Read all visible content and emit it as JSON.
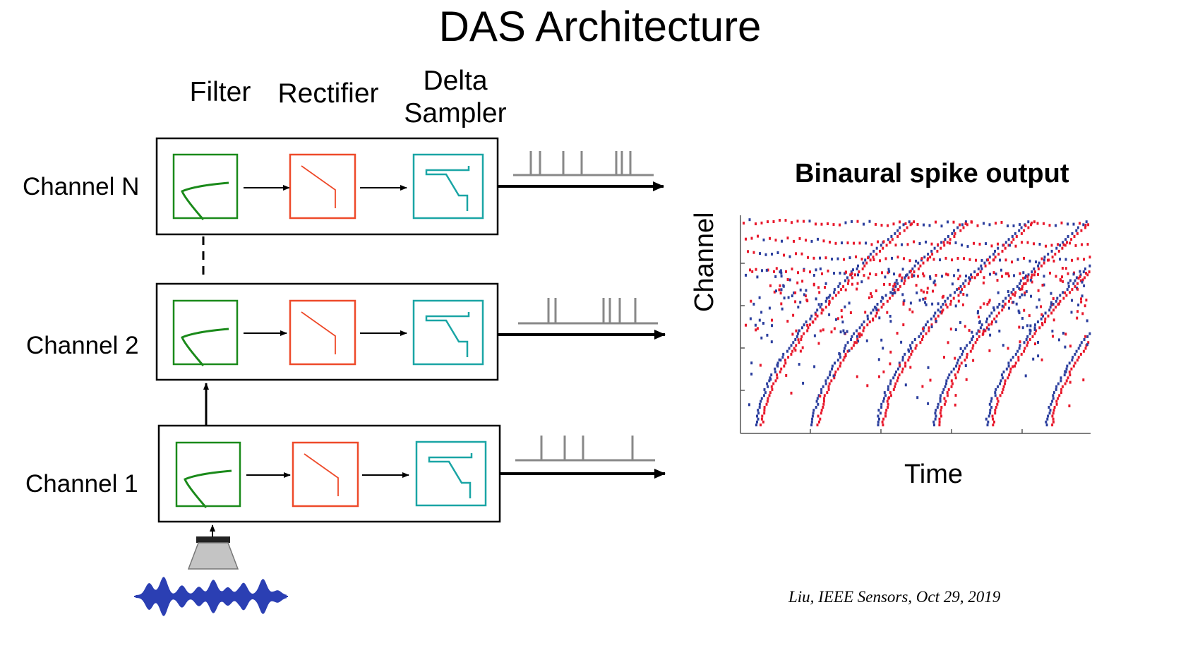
{
  "title": "DAS Architecture",
  "column_headers": {
    "filter": "Filter",
    "rectifier": "Rectifier",
    "delta_sampler_line1": "Delta",
    "delta_sampler_line2": "Sampler"
  },
  "channels": [
    {
      "label": "Channel N"
    },
    {
      "label": "Channel 2"
    },
    {
      "label": "Channel 1"
    }
  ],
  "plot": {
    "title": "Binaural spike output",
    "ylabel": "Channel",
    "xlabel": "Time"
  },
  "citation": "Liu, IEEE Sensors, Oct 29, 2019",
  "colors": {
    "filter": "#1a8a1a",
    "rectifier": "#ee4a2a",
    "delta_sampler": "#1aa5a5",
    "spike_train": "#888888",
    "spike_red": "#e8192c",
    "spike_blue": "#2c3f9e",
    "waveform": "#2b3fb3"
  }
}
